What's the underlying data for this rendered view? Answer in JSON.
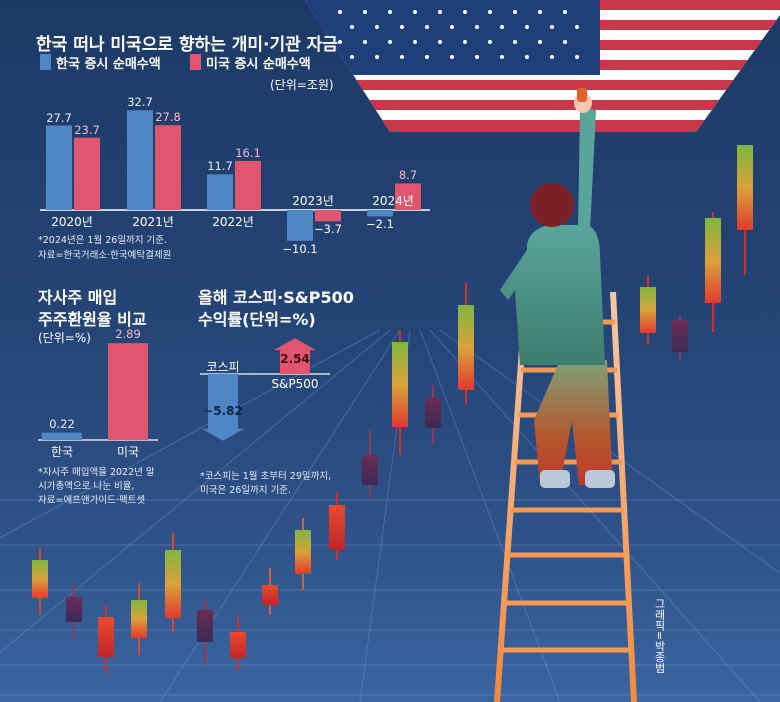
{
  "chart_data": [
    {
      "type": "bar",
      "title": "한국 떠나 미국으로 향하는 개미·기관 자금",
      "unit_label": "(단위=조원)",
      "categories": [
        "2020년",
        "2021년",
        "2022년",
        "2023년",
        "2024년"
      ],
      "series": [
        {
          "name": "한국 증시 순매수액",
          "color": "#4f86c6",
          "values": [
            27.7,
            32.7,
            11.7,
            -10.1,
            -2.1
          ],
          "labels": [
            "27.7",
            "32.7",
            "11.7",
            "−10.1",
            "−2.1"
          ]
        },
        {
          "name": "미국 증시 순매수액",
          "color": "#e0566f",
          "values": [
            23.7,
            27.8,
            16.1,
            -3.7,
            8.7
          ],
          "labels": [
            "23.7",
            "27.8",
            "16.1",
            "−3.7",
            "8.7"
          ]
        }
      ],
      "note": [
        "*2024년은 1월 26일까지 기준.",
        "자료=한국거래소·한국예탁결제원"
      ]
    },
    {
      "type": "bar",
      "title": [
        "자사주 매입",
        "주주환원율 비교"
      ],
      "unit_label": "(단위=%)",
      "categories": [
        "한국",
        "미국"
      ],
      "values": [
        0.22,
        2.89
      ],
      "labels": [
        "0.22",
        "2.89"
      ],
      "colors": [
        "#4f86c6",
        "#e0566f"
      ],
      "note": [
        "*자사주 매입액을 2022년 말",
        "시가총액으로 나눈 비율,",
        "자료=에프앤가이드·팩트셋"
      ]
    },
    {
      "type": "bar",
      "title": [
        "올해 코스피·S&P500",
        "수익률(단위=%)"
      ],
      "categories": [
        "코스피",
        "S&P500"
      ],
      "values": [
        -5.82,
        2.54
      ],
      "labels": [
        "−5.82",
        "2.54"
      ],
      "colors": [
        "#4f86c6",
        "#e0566f"
      ],
      "note": [
        "*코스피는 1월 초부터 29일까지,",
        "미국은 26일까지 기준."
      ]
    }
  ],
  "credit": "그래픽=박종범",
  "colors": {
    "background": "#24426f",
    "korea": "#4f86c6",
    "usa": "#e0566f"
  }
}
